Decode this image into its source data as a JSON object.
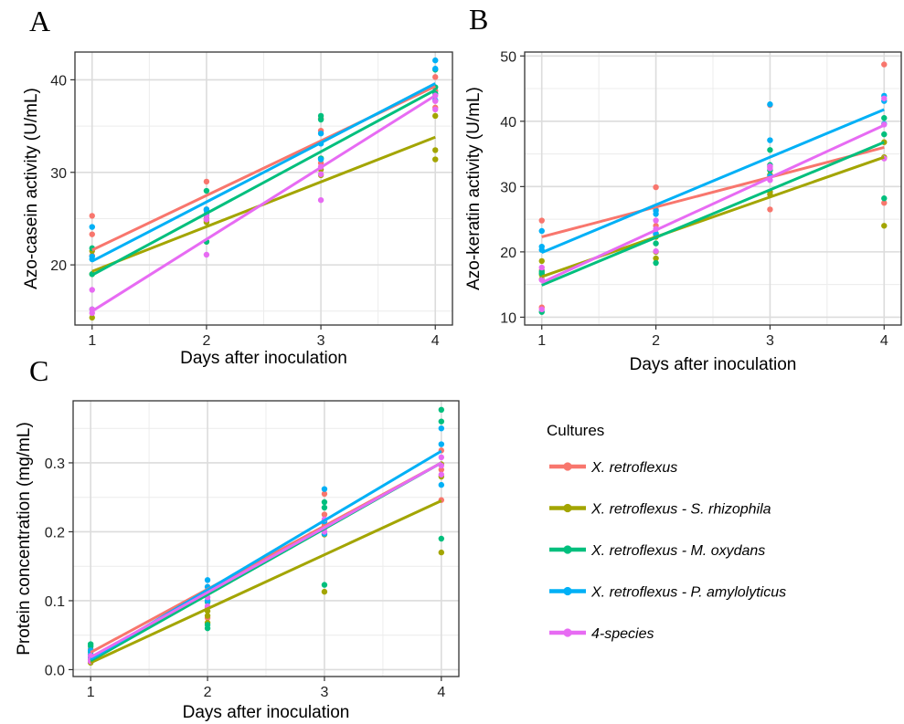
{
  "legend": {
    "title": "Cultures",
    "entries": [
      {
        "name": "X. retroflexus",
        "color": "#F8766D"
      },
      {
        "name": "X. retroflexus - S. rhizophila",
        "color": "#A3A500"
      },
      {
        "name": "X. retroflexus - M. oxydans",
        "color": "#00BF7D"
      },
      {
        "name": "X. retroflexus - P. amylolyticus",
        "color": "#00B0F6"
      },
      {
        "name": "4-species",
        "color": "#E76BF3"
      }
    ]
  },
  "chart_data": [
    {
      "panel": "A",
      "type": "scatter",
      "xlabel": "Days after inoculation",
      "ylabel": "Azo-casein activity (U/mL)",
      "xticks": [
        1,
        2,
        3,
        4
      ],
      "yticks": [
        20,
        30,
        40
      ],
      "xlim": [
        0.85,
        4.15
      ],
      "ylim": [
        13.5,
        43
      ],
      "grid": true,
      "series": [
        {
          "name": "X. retroflexus",
          "color": "#F8766D",
          "points": [
            [
              1,
              25.3
            ],
            [
              1,
              23.3
            ],
            [
              1,
              21.0
            ],
            [
              2,
              29.0
            ],
            [
              2,
              26.0
            ],
            [
              2,
              24.8
            ],
            [
              3,
              35.8
            ],
            [
              3,
              34.5
            ],
            [
              3,
              31.0
            ],
            [
              4,
              40.3
            ],
            [
              4,
              38.8
            ],
            [
              4,
              37.0
            ]
          ],
          "fit": [
            [
              1,
              21.6
            ],
            [
              4,
              39.3
            ]
          ]
        },
        {
          "name": "X. retroflexus - S. rhizophila",
          "color": "#A3A500",
          "points": [
            [
              1,
              14.3
            ],
            [
              1,
              19.0
            ],
            [
              1,
              21.5
            ],
            [
              2,
              24.6
            ],
            [
              2,
              25.0
            ],
            [
              2,
              22.5
            ],
            [
              3,
              29.7
            ],
            [
              3,
              30.3
            ],
            [
              3,
              31.5
            ],
            [
              4,
              31.4
            ],
            [
              4,
              32.4
            ],
            [
              4,
              36.1
            ]
          ],
          "fit": [
            [
              1,
              19.3
            ],
            [
              4,
              33.8
            ]
          ]
        },
        {
          "name": "X. retroflexus - M. oxydans",
          "color": "#00BF7D",
          "points": [
            [
              1,
              15.2
            ],
            [
              1,
              21.8
            ],
            [
              1,
              19.0
            ],
            [
              2,
              28.0
            ],
            [
              2,
              22.5
            ],
            [
              2,
              25.5
            ],
            [
              3,
              36.1
            ],
            [
              3,
              35.7
            ],
            [
              3,
              31.5
            ],
            [
              4,
              41.1
            ],
            [
              4,
              38.5
            ],
            [
              4,
              39.2
            ]
          ],
          "fit": [
            [
              1,
              18.9
            ],
            [
              4,
              38.9
            ]
          ]
        },
        {
          "name": "X. retroflexus - P. amylolyticus",
          "color": "#00B0F6",
          "points": [
            [
              1,
              24.1
            ],
            [
              1,
              20.6
            ],
            [
              1,
              20.9
            ],
            [
              2,
              25.9
            ],
            [
              2,
              25.4
            ],
            [
              2,
              26.0
            ],
            [
              3,
              33.1
            ],
            [
              3,
              34.2
            ],
            [
              3,
              31.4
            ],
            [
              4,
              42.1
            ],
            [
              4,
              41.2
            ],
            [
              4,
              37.8
            ]
          ],
          "fit": [
            [
              1,
              20.4
            ],
            [
              4,
              39.6
            ]
          ]
        },
        {
          "name": "4-species",
          "color": "#E76BF3",
          "points": [
            [
              1,
              17.3
            ],
            [
              1,
              14.8
            ],
            [
              1,
              15.2
            ],
            [
              2,
              21.1
            ],
            [
              2,
              24.9
            ],
            [
              2,
              25.3
            ],
            [
              3,
              27.0
            ],
            [
              3,
              29.8
            ],
            [
              3,
              30.6
            ],
            [
              4,
              38.3
            ],
            [
              4,
              37.7
            ],
            [
              4,
              36.8
            ]
          ],
          "fit": [
            [
              1,
              15.0
            ],
            [
              4,
              38.3
            ]
          ]
        }
      ]
    },
    {
      "panel": "B",
      "type": "scatter",
      "xlabel": "Days after inoculation",
      "ylabel": "Azo-keratin activity (U/mL)",
      "xticks": [
        1,
        2,
        3,
        4
      ],
      "yticks": [
        10,
        20,
        30,
        40,
        50
      ],
      "xlim": [
        0.85,
        4.15
      ],
      "ylim": [
        8.8,
        50.6
      ],
      "grid": true,
      "series": [
        {
          "name": "X. retroflexus",
          "color": "#F8766D",
          "points": [
            [
              1,
              24.8
            ],
            [
              1,
              11.5
            ],
            [
              1,
              17.2
            ],
            [
              2,
              29.9
            ],
            [
              2,
              24.0
            ],
            [
              2,
              26.5
            ],
            [
              3,
              42.5
            ],
            [
              3,
              26.5
            ],
            [
              3,
              33.0
            ],
            [
              4,
              48.7
            ],
            [
              4,
              27.5
            ],
            [
              4,
              34.4
            ]
          ],
          "fit": [
            [
              1,
              22.3
            ],
            [
              4,
              36.0
            ]
          ]
        },
        {
          "name": "X. retroflexus - S. rhizophila",
          "color": "#A3A500",
          "points": [
            [
              1,
              18.6
            ],
            [
              1,
              16.5
            ],
            [
              1,
              15.8
            ],
            [
              2,
              19.0
            ],
            [
              2,
              20.0
            ],
            [
              2,
              22.3
            ],
            [
              3,
              29.2
            ],
            [
              3,
              28.8
            ],
            [
              3,
              31.8
            ],
            [
              4,
              24.0
            ],
            [
              4,
              34.5
            ],
            [
              4,
              36.8
            ]
          ],
          "fit": [
            [
              1,
              16.2
            ],
            [
              4,
              34.5
            ]
          ]
        },
        {
          "name": "X. retroflexus - M. oxydans",
          "color": "#00BF7D",
          "points": [
            [
              1,
              10.8
            ],
            [
              1,
              17.0
            ],
            [
              1,
              16.7
            ],
            [
              2,
              18.3
            ],
            [
              2,
              21.3
            ],
            [
              2,
              22.8
            ],
            [
              3,
              35.6
            ],
            [
              3,
              32.5
            ],
            [
              3,
              33.3
            ],
            [
              4,
              28.2
            ],
            [
              4,
              38.0
            ],
            [
              4,
              40.5
            ]
          ],
          "fit": [
            [
              1,
              14.9
            ],
            [
              4,
              36.8
            ]
          ]
        },
        {
          "name": "X. retroflexus - P. amylolyticus",
          "color": "#00B0F6",
          "points": [
            [
              1,
              20.8
            ],
            [
              1,
              20.3
            ],
            [
              1,
              23.2
            ],
            [
              2,
              26.3
            ],
            [
              2,
              25.8
            ],
            [
              2,
              22.7
            ],
            [
              3,
              42.6
            ],
            [
              3,
              37.1
            ],
            [
              3,
              31.6
            ],
            [
              4,
              43.9
            ],
            [
              4,
              39.6
            ],
            [
              4,
              43.1
            ]
          ],
          "fit": [
            [
              1,
              19.9
            ],
            [
              4,
              41.8
            ]
          ]
        },
        {
          "name": "4-species",
          "color": "#E76BF3",
          "points": [
            [
              1,
              15.7
            ],
            [
              1,
              11.2
            ],
            [
              1,
              17.6
            ],
            [
              2,
              24.8
            ],
            [
              2,
              20.1
            ],
            [
              2,
              23.5
            ],
            [
              3,
              32.8
            ],
            [
              3,
              31.0
            ],
            [
              3,
              33.1
            ],
            [
              4,
              39.5
            ],
            [
              4,
              43.5
            ],
            [
              4,
              34.3
            ]
          ],
          "fit": [
            [
              1,
              15.3
            ],
            [
              4,
              39.4
            ]
          ]
        }
      ]
    },
    {
      "panel": "C",
      "type": "scatter",
      "xlabel": "Days after inoculation",
      "ylabel": "Protein concentration (mg/mL)",
      "xticks": [
        1,
        2,
        3,
        4
      ],
      "yticks": [
        "0.0",
        "0.1",
        "0.2",
        "0.3"
      ],
      "xlim": [
        0.85,
        4.15
      ],
      "ylim": [
        -0.01,
        0.39
      ],
      "grid": true,
      "series": [
        {
          "name": "X. retroflexus",
          "color": "#F8766D",
          "points": [
            [
              1,
              0.03
            ],
            [
              1,
              0.022
            ],
            [
              1,
              0.018
            ],
            [
              2,
              0.075
            ],
            [
              2,
              0.09
            ],
            [
              2,
              0.12
            ],
            [
              3,
              0.255
            ],
            [
              3,
              0.225
            ],
            [
              3,
              0.21
            ],
            [
              4,
              0.318
            ],
            [
              4,
              0.29
            ],
            [
              4,
              0.246
            ]
          ],
          "fit": [
            [
              1,
              0.025
            ],
            [
              4,
              0.3
            ]
          ]
        },
        {
          "name": "X. retroflexus - S. rhizophila",
          "color": "#A3A500",
          "points": [
            [
              1,
              0.01
            ],
            [
              1,
              0.02
            ],
            [
              1,
              0.015
            ],
            [
              2,
              0.085
            ],
            [
              2,
              0.078
            ],
            [
              2,
              0.068
            ],
            [
              3,
              0.113
            ],
            [
              3,
              0.196
            ],
            [
              3,
              0.215
            ],
            [
              4,
              0.17
            ],
            [
              4,
              0.28
            ],
            [
              4,
              0.298
            ]
          ],
          "fit": [
            [
              1,
              0.01
            ],
            [
              4,
              0.245
            ]
          ]
        },
        {
          "name": "X. retroflexus - M. oxydans",
          "color": "#00BF7D",
          "points": [
            [
              1,
              0.037
            ],
            [
              1,
              0.034
            ],
            [
              1,
              0.026
            ],
            [
              2,
              0.06
            ],
            [
              2,
              0.065
            ],
            [
              2,
              0.098
            ],
            [
              3,
              0.123
            ],
            [
              3,
              0.235
            ],
            [
              3,
              0.243
            ],
            [
              4,
              0.19
            ],
            [
              4,
              0.377
            ],
            [
              4,
              0.36
            ]
          ],
          "fit": [
            [
              1,
              0.013
            ],
            [
              4,
              0.3
            ]
          ]
        },
        {
          "name": "X. retroflexus - P. amylolyticus",
          "color": "#00B0F6",
          "points": [
            [
              1,
              0.022
            ],
            [
              1,
              0.018
            ],
            [
              1,
              0.028
            ],
            [
              2,
              0.13
            ],
            [
              2,
              0.12
            ],
            [
              2,
              0.1
            ],
            [
              3,
              0.262
            ],
            [
              3,
              0.197
            ],
            [
              3,
              0.215
            ],
            [
              4,
              0.35
            ],
            [
              4,
              0.327
            ],
            [
              4,
              0.268
            ]
          ],
          "fit": [
            [
              1,
              0.015
            ],
            [
              4,
              0.317
            ]
          ]
        },
        {
          "name": "4-species",
          "color": "#E76BF3",
          "points": [
            [
              1,
              0.02
            ],
            [
              1,
              0.015
            ],
            [
              1,
              0.012
            ],
            [
              2,
              0.105
            ],
            [
              2,
              0.112
            ],
            [
              2,
              0.092
            ],
            [
              3,
              0.205
            ],
            [
              3,
              0.218
            ],
            [
              3,
              0.2
            ],
            [
              4,
              0.308
            ],
            [
              4,
              0.296
            ],
            [
              4,
              0.283
            ]
          ],
          "fit": [
            [
              1,
              0.018
            ],
            [
              4,
              0.3
            ]
          ]
        }
      ]
    }
  ]
}
